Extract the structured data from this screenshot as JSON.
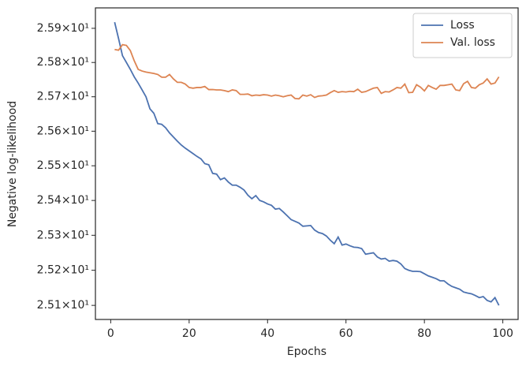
{
  "chart_data": {
    "type": "line",
    "xlabel": "Epochs",
    "ylabel": "Negative log-likelihood",
    "ylog": true,
    "legend": "upper right",
    "xlim": [
      -3.9,
      103.9
    ],
    "xticks": [
      0,
      20,
      40,
      60,
      80,
      100
    ],
    "ylim": [
      25.06,
      25.96
    ],
    "yticks": [
      {
        "value": 25.1,
        "label": "2.51×10¹"
      },
      {
        "value": 25.2,
        "label": "2.52×10¹"
      },
      {
        "value": 25.3,
        "label": "2.53×10¹"
      },
      {
        "value": 25.4,
        "label": "2.54×10¹"
      },
      {
        "value": 25.5,
        "label": "2.55×10¹"
      },
      {
        "value": 25.6,
        "label": "2.56×10¹"
      },
      {
        "value": 25.7,
        "label": "2.57×10¹"
      },
      {
        "value": 25.8,
        "label": "2.58×10¹"
      },
      {
        "value": 25.9,
        "label": "2.59×10¹"
      }
    ],
    "x": [
      1,
      2,
      3,
      4,
      5,
      6,
      7,
      8,
      9,
      10,
      11,
      12,
      13,
      14,
      15,
      16,
      17,
      18,
      19,
      20,
      21,
      22,
      23,
      24,
      25,
      26,
      27,
      28,
      29,
      30,
      31,
      32,
      33,
      34,
      35,
      36,
      37,
      38,
      39,
      40,
      41,
      42,
      43,
      44,
      45,
      46,
      47,
      48,
      49,
      50,
      51,
      52,
      53,
      54,
      55,
      56,
      57,
      58,
      59,
      60,
      61,
      62,
      63,
      64,
      65,
      66,
      67,
      68,
      69,
      70,
      71,
      72,
      73,
      74,
      75,
      76,
      77,
      78,
      79,
      80,
      81,
      82,
      83,
      84,
      85,
      86,
      87,
      88,
      89,
      90,
      91,
      92,
      93,
      94,
      95,
      96,
      97,
      98,
      99
    ],
    "series": [
      {
        "name": "Loss",
        "color": "#4c72b0",
        "values": [
          25.918,
          25.87,
          25.82,
          25.8,
          25.78,
          25.758,
          25.74,
          25.72,
          25.7,
          25.665,
          25.652,
          25.622,
          25.62,
          25.61,
          25.595,
          25.583,
          25.571,
          25.56,
          25.551,
          25.543,
          25.535,
          25.527,
          25.52,
          25.506,
          25.503,
          25.478,
          25.476,
          25.46,
          25.465,
          25.453,
          25.444,
          25.444,
          25.438,
          25.43,
          25.415,
          25.405,
          25.414,
          25.4,
          25.396,
          25.39,
          25.386,
          25.375,
          25.377,
          25.367,
          25.356,
          25.345,
          25.34,
          25.335,
          25.326,
          25.327,
          25.328,
          25.315,
          25.308,
          25.305,
          25.298,
          25.286,
          25.276,
          25.295,
          25.272,
          25.275,
          25.27,
          25.266,
          25.265,
          25.262,
          25.246,
          25.248,
          25.25,
          25.238,
          25.232,
          25.234,
          25.226,
          25.228,
          25.226,
          25.218,
          25.205,
          25.2,
          25.197,
          25.197,
          25.196,
          25.19,
          25.184,
          25.18,
          25.176,
          25.17,
          25.17,
          25.161,
          25.154,
          25.15,
          25.146,
          25.138,
          25.135,
          25.133,
          25.128,
          25.122,
          25.125,
          25.114,
          25.11,
          25.122,
          25.1
        ]
      },
      {
        "name": "Val. loss",
        "color": "#dd8452",
        "values": [
          25.838,
          25.836,
          25.852,
          25.85,
          25.835,
          25.805,
          25.78,
          25.775,
          25.772,
          25.77,
          25.768,
          25.765,
          25.757,
          25.757,
          25.765,
          25.752,
          25.742,
          25.742,
          25.737,
          25.727,
          25.725,
          25.727,
          25.727,
          25.73,
          25.721,
          25.721,
          25.72,
          25.72,
          25.718,
          25.715,
          25.72,
          25.718,
          25.707,
          25.707,
          25.708,
          25.703,
          25.705,
          25.704,
          25.706,
          25.705,
          25.702,
          25.705,
          25.703,
          25.7,
          25.703,
          25.705,
          25.695,
          25.694,
          25.705,
          25.702,
          25.706,
          25.698,
          25.702,
          25.703,
          25.705,
          25.712,
          25.718,
          25.713,
          25.715,
          25.714,
          25.716,
          25.715,
          25.722,
          25.713,
          25.715,
          25.72,
          25.725,
          25.727,
          25.71,
          25.715,
          25.714,
          25.72,
          25.727,
          25.725,
          25.737,
          25.712,
          25.713,
          25.735,
          25.728,
          25.717,
          25.733,
          25.727,
          25.722,
          25.733,
          25.733,
          25.735,
          25.737,
          25.72,
          25.718,
          25.738,
          25.745,
          25.727,
          25.725,
          25.735,
          25.74,
          25.752,
          25.737,
          25.74,
          25.758
        ]
      }
    ]
  }
}
